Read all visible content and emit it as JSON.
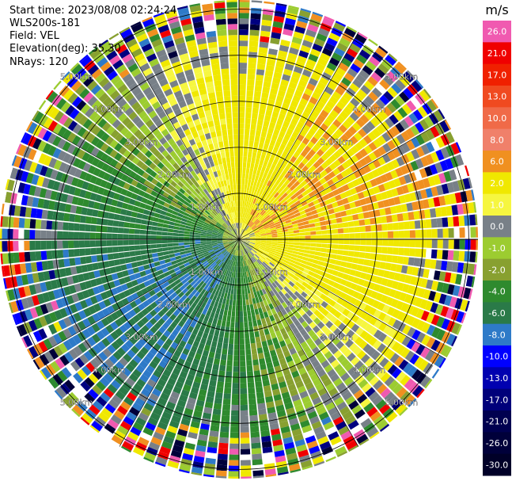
{
  "header": {
    "start_time": "Start time: 2023/08/08 02:24:24",
    "instrument": "WLS200s-181",
    "field": "Field: VEL",
    "elevation": "Elevation(deg): 35.30",
    "nrays": "NRays: 120"
  },
  "colorbar": {
    "unit": "m/s",
    "levels": [
      {
        "label": "26.0",
        "color": "#f05ab0"
      },
      {
        "label": "21.0",
        "color": "#f00000"
      },
      {
        "label": "17.0",
        "color": "#f02000"
      },
      {
        "label": "13.0",
        "color": "#f04a20"
      },
      {
        "label": "10.0",
        "color": "#f06a48"
      },
      {
        "label": "8.0",
        "color": "#f0806a"
      },
      {
        "label": "6.0",
        "color": "#f09020"
      },
      {
        "label": "2.0",
        "color": "#f0e800"
      },
      {
        "label": "1.0",
        "color": "#f6f640"
      },
      {
        "label": "0.0",
        "color": "#788088"
      },
      {
        "label": "-1.0",
        "color": "#9ccc30"
      },
      {
        "label": "-2.0",
        "color": "#88a030"
      },
      {
        "label": "-4.0",
        "color": "#2e8a2e"
      },
      {
        "label": "-6.0",
        "color": "#2a7a48"
      },
      {
        "label": "-8.0",
        "color": "#2e7ac8"
      },
      {
        "label": "-10.0",
        "color": "#0000ff"
      },
      {
        "label": "-13.0",
        "color": "#0000b0"
      },
      {
        "label": "-17.0",
        "color": "#00007a"
      },
      {
        "label": "-21.0",
        "color": "#000050"
      },
      {
        "label": "-26.0",
        "color": "#00003a"
      },
      {
        "label": "-30.0",
        "color": "#000028"
      }
    ]
  },
  "chart_data": {
    "type": "ppi",
    "title": "Start time: 2023/08/08 02:24:24",
    "field": "VEL",
    "units": "m/s",
    "n_rays": 120,
    "elevation_deg": 35.3,
    "max_range_km": 5.2,
    "range_ring_labels": [
      "1.00km",
      "2.00km",
      "3.00km",
      "4.00km",
      "5.00km"
    ],
    "range_rings_km": [
      1,
      2,
      3,
      4,
      5
    ],
    "velocity_regions": [
      {
        "description": "positive (toward NE/E)",
        "azimuth_deg": [
          5,
          95
        ],
        "range_km": [
          0.4,
          3.2
        ],
        "velocity_ms": [
          2,
          10
        ]
      },
      {
        "description": "negative (toward SW/S)",
        "azimuth_deg": [
          150,
          290
        ],
        "range_km": [
          0.2,
          4.2
        ],
        "velocity_ms": [
          -8,
          -1
        ]
      },
      {
        "description": "noisy far range",
        "azimuth_deg": [
          0,
          360
        ],
        "range_km": [
          4.3,
          5.2
        ],
        "velocity_ms": [
          -30,
          26
        ]
      }
    ]
  }
}
